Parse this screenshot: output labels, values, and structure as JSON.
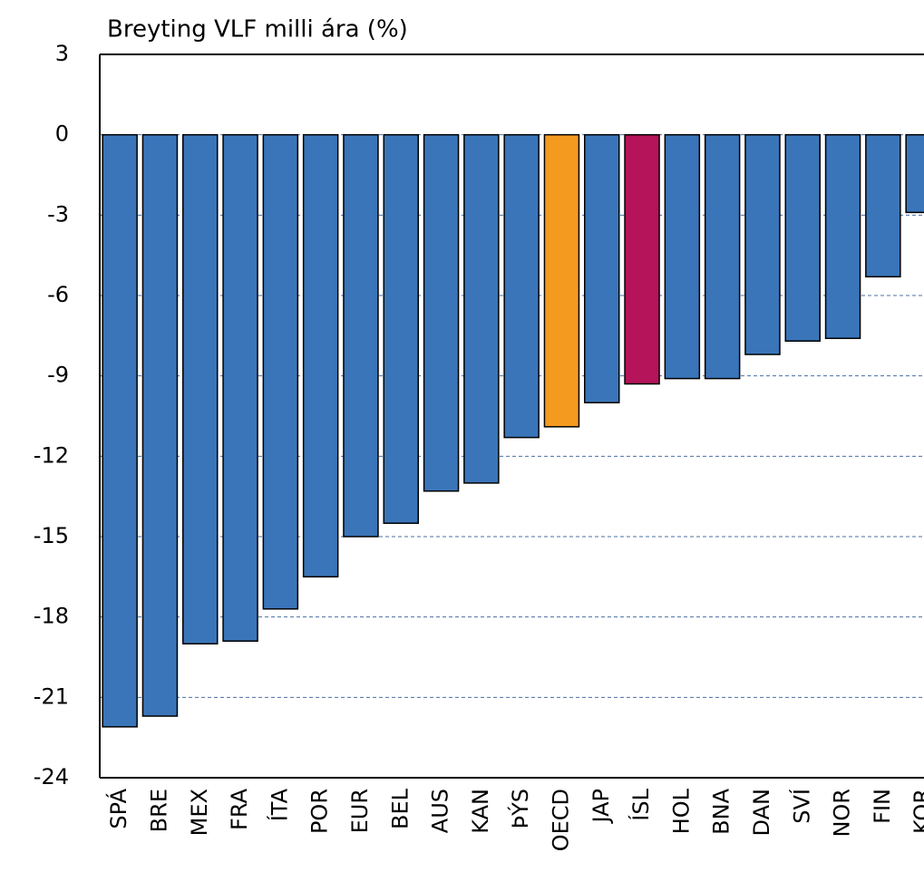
{
  "chart_data": {
    "type": "bar",
    "title": "Breyting VLF milli ára (%)",
    "categories": [
      "SPÁ",
      "BRE",
      "MEX",
      "FRA",
      "ÍTA",
      "POR",
      "EUR",
      "BEL",
      "AUS",
      "KAN",
      "ÞÝS",
      "OECD",
      "JAP",
      "ÍSL",
      "HOL",
      "BNA",
      "DAN",
      "SVÍ",
      "NOR",
      "FIN",
      "KOR"
    ],
    "values": [
      -22.1,
      -21.7,
      -19.0,
      -18.9,
      -17.7,
      -16.5,
      -15.0,
      -14.5,
      -13.3,
      -13.0,
      -11.3,
      -10.9,
      -10.0,
      -9.3,
      -9.1,
      -9.1,
      -8.2,
      -7.7,
      -7.6,
      -5.3,
      -2.9
    ],
    "colors": [
      "#3a75b9",
      "#3a75b9",
      "#3a75b9",
      "#3a75b9",
      "#3a75b9",
      "#3a75b9",
      "#3a75b9",
      "#3a75b9",
      "#3a75b9",
      "#3a75b9",
      "#3a75b9",
      "#f39a1f",
      "#3a75b9",
      "#b5135a",
      "#3a75b9",
      "#3a75b9",
      "#3a75b9",
      "#3a75b9",
      "#3a75b9",
      "#3a75b9",
      "#3a75b9"
    ],
    "ylim": [
      -24,
      3
    ],
    "yticks": [
      -24,
      -21,
      -18,
      -15,
      -12,
      -9,
      -6,
      -3,
      0,
      3
    ],
    "grid": true
  }
}
